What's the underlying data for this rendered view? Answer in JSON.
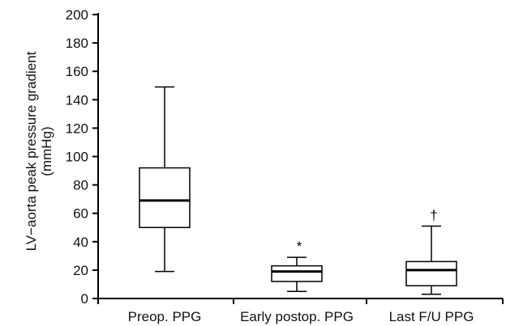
{
  "chart_data": {
    "type": "boxplot",
    "title": "",
    "xlabel": "",
    "ylabel_lines": [
      "LV−aorta peak pressure gradient",
      "(mmHg)"
    ],
    "ylim": [
      0,
      200
    ],
    "yticks": [
      0,
      20,
      40,
      60,
      80,
      100,
      120,
      140,
      160,
      180,
      200
    ],
    "grid": false,
    "categories": [
      "Preop. PPG",
      "Early postop. PPG",
      "Last F/U PPG"
    ],
    "boxes": [
      {
        "category": "Preop. PPG",
        "min": 19,
        "q1": 50,
        "median": 69,
        "q3": 92,
        "max": 149,
        "marker": ""
      },
      {
        "category": "Early postop. PPG",
        "min": 5,
        "q1": 12,
        "median": 19,
        "q3": 23,
        "max": 29,
        "marker": "*"
      },
      {
        "category": "Last F/U PPG",
        "min": 3,
        "q1": 9,
        "median": 20,
        "q3": 26,
        "max": 51,
        "marker": "†"
      }
    ]
  }
}
